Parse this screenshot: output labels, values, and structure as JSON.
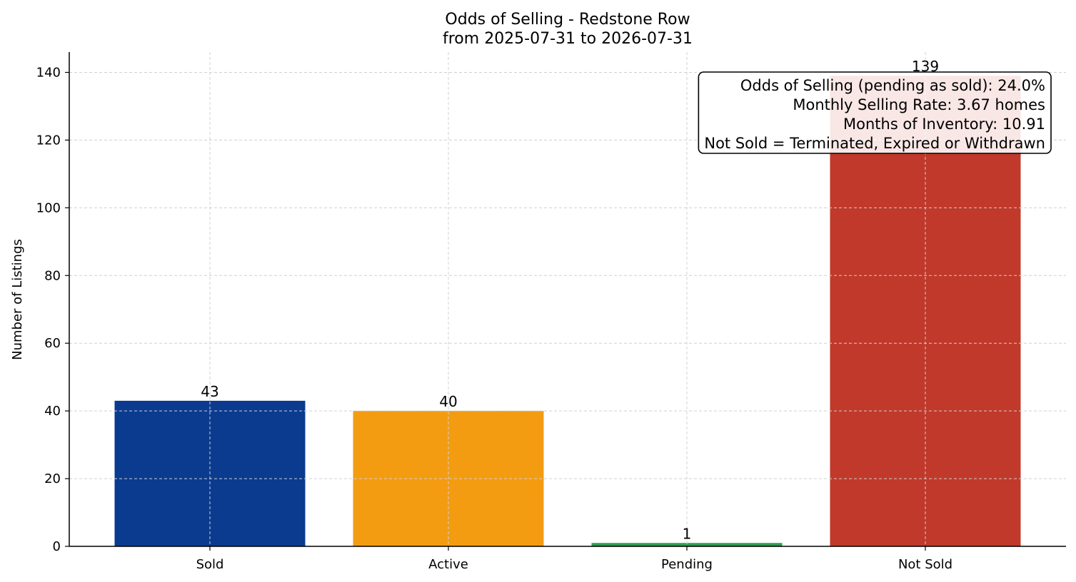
{
  "chart_data": {
    "type": "bar",
    "title": "Odds of Selling - Redstone Row",
    "subtitle": "from 2025-07-31 to 2026-07-31",
    "xlabel": "",
    "ylabel": "Number of Listings",
    "categories": [
      "Sold",
      "Active",
      "Pending",
      "Not Sold"
    ],
    "values": [
      43,
      40,
      1,
      139
    ],
    "colors": [
      "#0b3b8f",
      "#f39c12",
      "#2e9e50",
      "#c0392b"
    ],
    "ylim": [
      0,
      146
    ],
    "yticks": [
      0,
      20,
      40,
      60,
      80,
      100,
      120,
      140
    ],
    "grid": true,
    "annotation": {
      "lines": [
        "Odds of Selling (pending as sold): 24.0%",
        "Monthly Selling Rate: 3.67 homes",
        "Months of Inventory: 10.91",
        "Not Sold = Terminated, Expired or Withdrawn"
      ],
      "placement": "top-right"
    }
  }
}
